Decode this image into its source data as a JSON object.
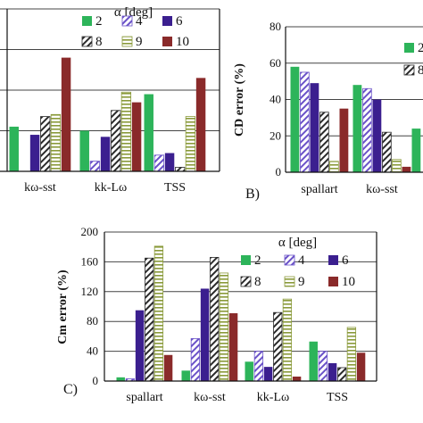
{
  "colors": {
    "a2": "#2db45a",
    "a4": "#6a52c8",
    "a6": "#3b1f8f",
    "a8": "#2a2a2a",
    "a9": "#8a9a3a",
    "a10": "#8a2a2a"
  },
  "chart_data": [
    {
      "type": "bar",
      "panel": "",
      "ylabel": "",
      "ylim": [
        0,
        80
      ],
      "yticks": [],
      "categories": [
        "",
        "kω-sst",
        "kk-Lω",
        "TSS"
      ],
      "legend": {
        "title": "α [deg]",
        "labels": [
          "2",
          "4",
          "6",
          "8",
          "9",
          "10"
        ]
      },
      "series": [
        {
          "name": "2",
          "pattern": "solid",
          "color": "a2",
          "values": [
            null,
            22,
            20,
            38
          ]
        },
        {
          "name": "4",
          "pattern": "hatch",
          "color": "a4",
          "values": [
            null,
            0,
            5,
            8
          ]
        },
        {
          "name": "6",
          "pattern": "solid",
          "color": "a6",
          "values": [
            null,
            18,
            17,
            9
          ]
        },
        {
          "name": "8",
          "pattern": "hatch",
          "color": "a8",
          "values": [
            null,
            27,
            30,
            2
          ]
        },
        {
          "name": "9",
          "pattern": "hlines",
          "color": "a9",
          "values": [
            null,
            28,
            39,
            27
          ]
        },
        {
          "name": "10",
          "pattern": "solid",
          "color": "a10",
          "values": [
            null,
            56,
            34,
            46
          ]
        }
      ]
    },
    {
      "type": "bar",
      "panel": "B)",
      "ylabel": "CD error (%)",
      "ylim": [
        0,
        80
      ],
      "yticks": [
        "0",
        "20",
        "40",
        "60",
        "80"
      ],
      "categories": [
        "spallart",
        "kω-sst",
        ""
      ],
      "legend": {
        "title": "",
        "labels": [
          "2",
          "8"
        ]
      },
      "series": [
        {
          "name": "2",
          "pattern": "solid",
          "color": "a2",
          "values": [
            58,
            48,
            24
          ]
        },
        {
          "name": "4",
          "pattern": "hatch",
          "color": "a4",
          "values": [
            55,
            46,
            null
          ]
        },
        {
          "name": "6",
          "pattern": "solid",
          "color": "a6",
          "values": [
            49,
            40,
            null
          ]
        },
        {
          "name": "8",
          "pattern": "hatch",
          "color": "a8",
          "values": [
            33,
            22,
            null
          ]
        },
        {
          "name": "9",
          "pattern": "hlines",
          "color": "a9",
          "values": [
            6,
            7,
            null
          ]
        },
        {
          "name": "10",
          "pattern": "solid",
          "color": "a10",
          "values": [
            35,
            3,
            null
          ]
        }
      ]
    },
    {
      "type": "bar",
      "panel": "C)",
      "ylabel": "Cm error (%)",
      "ylim": [
        0,
        200
      ],
      "yticks": [
        "0",
        "40",
        "80",
        "120",
        "160",
        "200"
      ],
      "categories": [
        "spallart",
        "kω-sst",
        "kk-Lω",
        "TSS"
      ],
      "legend": {
        "title": "α [deg]",
        "labels": [
          "2",
          "4",
          "6",
          "8",
          "9",
          "10"
        ]
      },
      "series": [
        {
          "name": "2",
          "pattern": "solid",
          "color": "a2",
          "values": [
            5,
            14,
            26,
            53
          ]
        },
        {
          "name": "4",
          "pattern": "hatch",
          "color": "a4",
          "values": [
            3,
            57,
            40,
            40
          ]
        },
        {
          "name": "6",
          "pattern": "solid",
          "color": "a6",
          "values": [
            95,
            124,
            19,
            24
          ]
        },
        {
          "name": "8",
          "pattern": "hatch",
          "color": "a8",
          "values": [
            165,
            166,
            92,
            18
          ]
        },
        {
          "name": "9",
          "pattern": "hlines",
          "color": "a9",
          "values": [
            181,
            145,
            110,
            72
          ]
        },
        {
          "name": "10",
          "pattern": "solid",
          "color": "a10",
          "values": [
            35,
            91,
            6,
            38
          ]
        }
      ]
    }
  ]
}
